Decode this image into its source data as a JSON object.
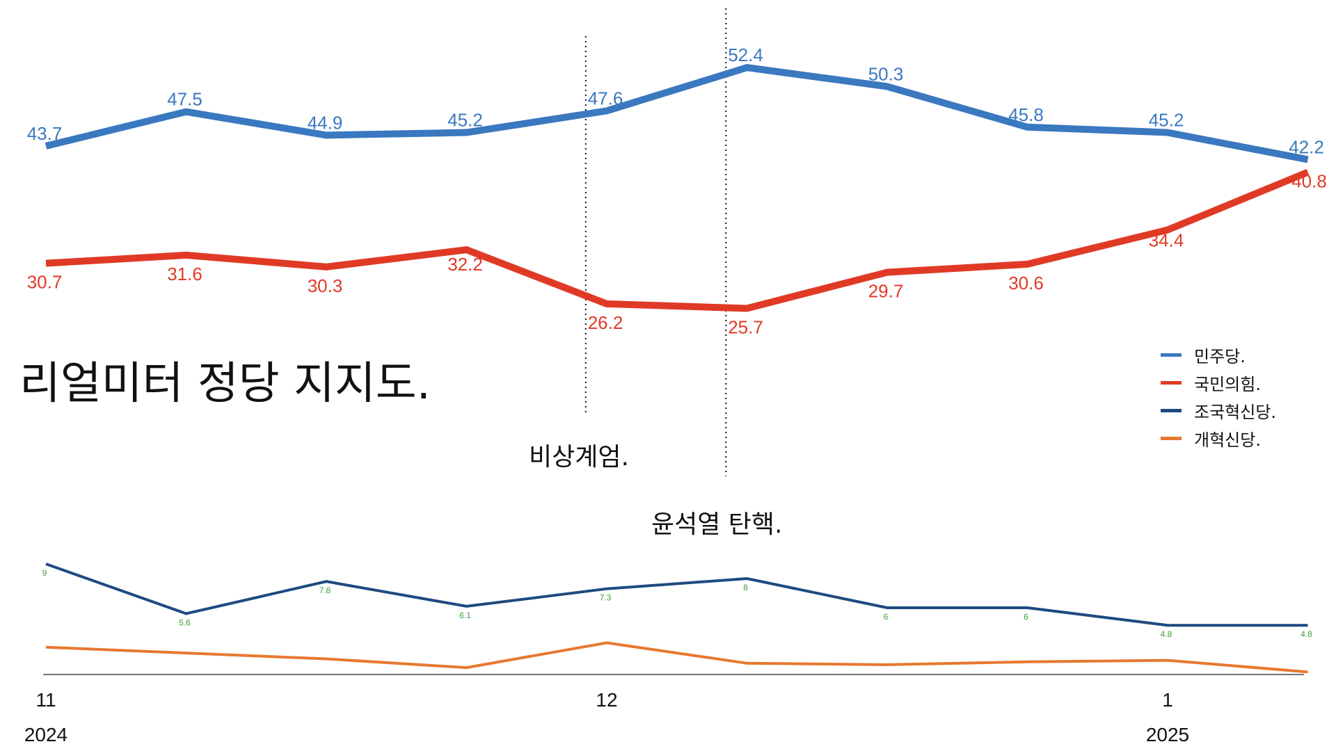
{
  "title": "리얼미터 정당 지지도.",
  "events": [
    {
      "label": "비상계엄.",
      "x_index": 3.85
    },
    {
      "label": "윤석열 탄핵.",
      "x_index": 4.85
    }
  ],
  "colors": {
    "minjoo": "#3a78c0",
    "ppp": "#e03a26",
    "rebuilding": "#1e4a80",
    "reform": "#e8782f",
    "small_label": "#3aa038"
  },
  "chart_data": {
    "type": "line",
    "x": [
      0,
      1,
      2,
      3,
      4,
      5,
      6,
      7,
      8,
      9
    ],
    "x_ticks": [
      {
        "index": 0,
        "label": "11",
        "year": "2024"
      },
      {
        "index": 4,
        "label": "12",
        "year": ""
      },
      {
        "index": 8,
        "label": "1",
        "year": "2025"
      }
    ],
    "series": [
      {
        "name": "민주당.",
        "key": "minjoo",
        "values": [
          43.7,
          47.5,
          44.9,
          45.2,
          47.6,
          52.4,
          50.3,
          45.8,
          45.2,
          42.2
        ],
        "labels": [
          "43.7",
          "47.5",
          "44.9",
          "45.2",
          "47.6",
          "52.4",
          "50.3",
          "45.8",
          "45.2",
          "42.2"
        ]
      },
      {
        "name": "국민의힘.",
        "key": "ppp",
        "values": [
          30.7,
          31.6,
          30.3,
          32.2,
          26.2,
          25.7,
          29.7,
          30.6,
          34.4,
          40.8
        ],
        "labels": [
          "30.7",
          "31.6",
          "30.3",
          "32.2",
          "26.2",
          "25.7",
          "29.7",
          "30.6",
          "34.4",
          "40.8"
        ]
      },
      {
        "name": "조국혁신당.",
        "key": "rebuilding",
        "values": [
          9,
          5.6,
          7.8,
          6.1,
          7.3,
          8,
          6,
          6,
          4.8,
          4.8
        ],
        "labels": [
          "9",
          "5.6",
          "7.8",
          "6.1",
          "7.3",
          "8",
          "6",
          "6",
          "4.8",
          "4.8"
        ]
      },
      {
        "name": "개혁신당.",
        "key": "reform",
        "values": [
          3.3,
          2.9,
          2.5,
          1.9,
          3.6,
          2.2,
          2.1,
          2.3,
          2.4,
          1.6
        ],
        "labels": []
      }
    ],
    "legend_position": "right",
    "grid": false
  }
}
